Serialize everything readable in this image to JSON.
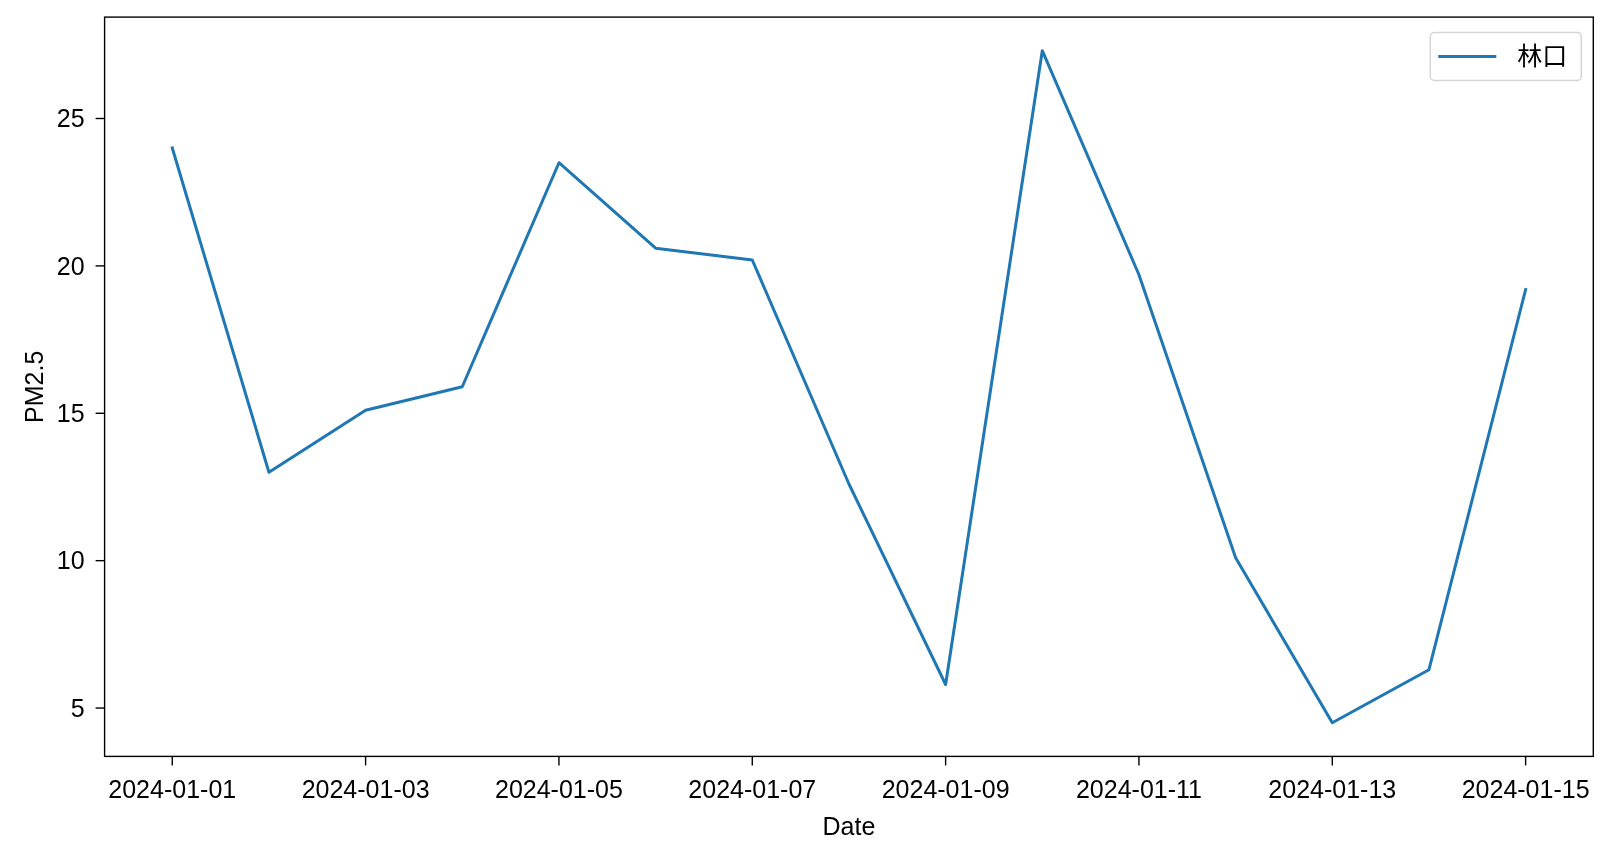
{
  "chart_data": {
    "type": "line",
    "xlabel": "Date",
    "ylabel": "PM2.5",
    "x": [
      "2024-01-01",
      "2024-01-02",
      "2024-01-03",
      "2024-01-04",
      "2024-01-05",
      "2024-01-06",
      "2024-01-07",
      "2024-01-08",
      "2024-01-09",
      "2024-01-10",
      "2024-01-11",
      "2024-01-12",
      "2024-01-13",
      "2024-01-14",
      "2024-01-15"
    ],
    "series": [
      {
        "name": "林口",
        "color": "#1f77b4",
        "values": [
          24.0,
          13.0,
          15.1,
          15.9,
          23.5,
          20.6,
          20.2,
          12.6,
          5.8,
          27.3,
          19.7,
          10.1,
          4.5,
          6.3,
          19.2
        ]
      }
    ],
    "xlim": [
      "2023-12-31T07:12",
      "2024-01-15T16:48"
    ],
    "xticks": [
      "2024-01-01",
      "2024-01-03",
      "2024-01-05",
      "2024-01-07",
      "2024-01-09",
      "2024-01-11",
      "2024-01-13",
      "2024-01-15"
    ],
    "ylim": [
      3.36,
      28.44
    ],
    "yticks": [
      5,
      10,
      15,
      20,
      25
    ],
    "legend": "top right"
  }
}
